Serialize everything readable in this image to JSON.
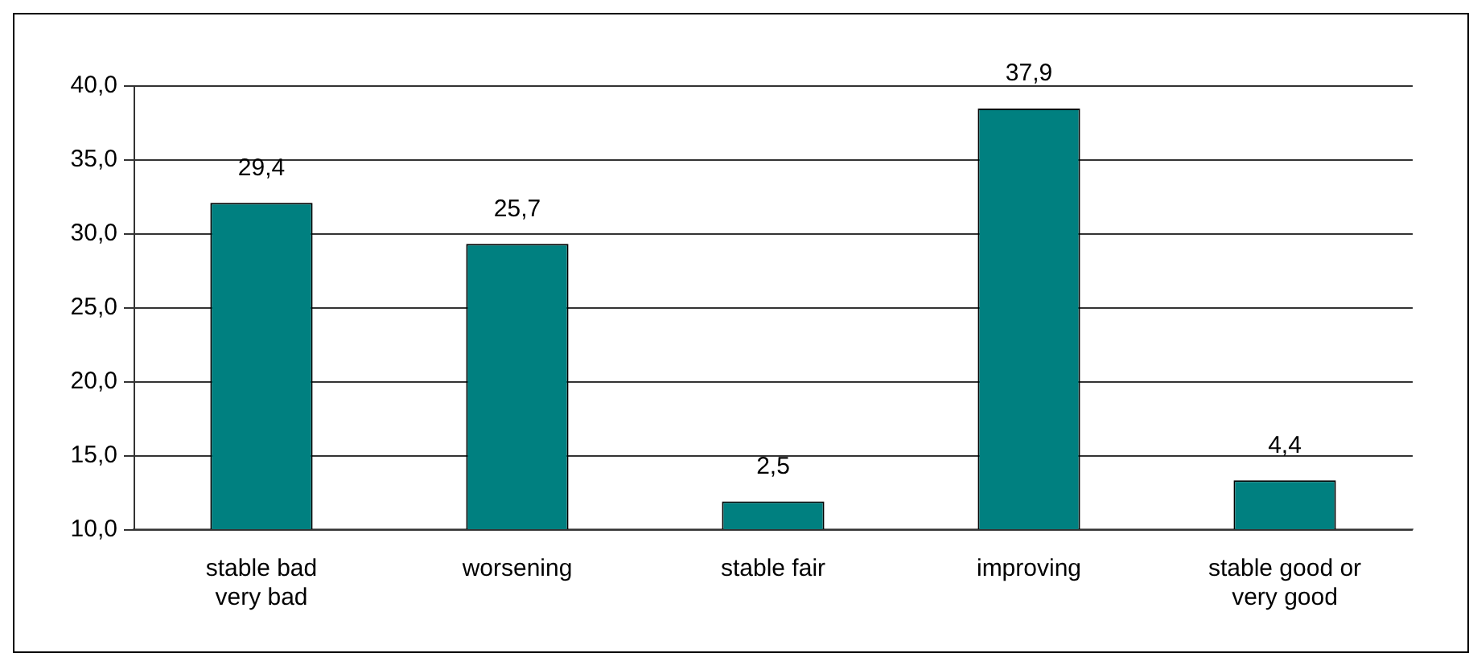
{
  "chart_data": {
    "type": "bar",
    "categories": [
      "stable bad\nvery bad",
      "worsening",
      "stable fair",
      "improving",
      "stable good or\nvery good"
    ],
    "values": [
      29.4,
      25.7,
      2.5,
      37.9,
      4.4
    ],
    "value_labels": [
      "29,4",
      "25,7",
      "2,5",
      "37,9",
      "4,4"
    ],
    "color": "#008080",
    "annotations": [
      "40,0",
      "35,0",
      "30,0",
      "25,0",
      "20,0",
      "15,0",
      "10,0"
    ],
    "grid": "y",
    "legend": false
  }
}
